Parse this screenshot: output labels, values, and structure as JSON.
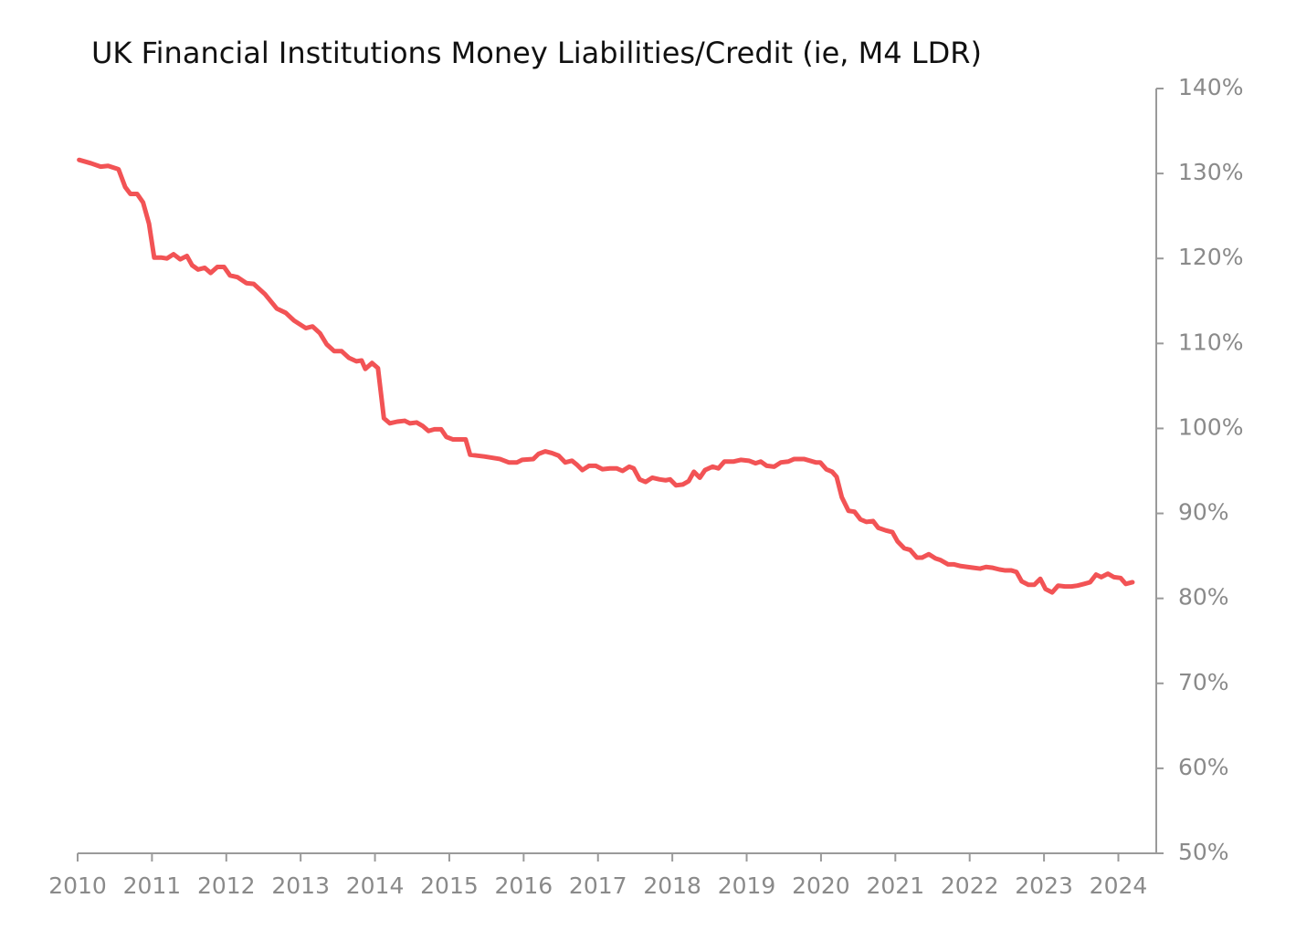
{
  "chart_data": {
    "type": "line",
    "title": "UK Financial Institutions Money Liabilities/Credit  (ie, M4 LDR)",
    "xlim": [
      2010,
      2024.51
    ],
    "xticks": [
      2010,
      2011,
      2012,
      2013,
      2014,
      2015,
      2016,
      2017,
      2018,
      2019,
      2020,
      2021,
      2022,
      2023,
      2024
    ],
    "ylim": [
      50,
      140
    ],
    "yticks": [
      {
        "value": 50,
        "label": "50%"
      },
      {
        "value": 60,
        "label": "60%"
      },
      {
        "value": 70,
        "label": "70%"
      },
      {
        "value": 80,
        "label": "80%"
      },
      {
        "value": 90,
        "label": "90%"
      },
      {
        "value": 100,
        "label": "100%"
      },
      {
        "value": 110,
        "label": "110%"
      },
      {
        "value": 120,
        "label": "120%"
      },
      {
        "value": 130,
        "label": "130%"
      },
      {
        "value": 140,
        "label": "140%"
      }
    ],
    "y_axis_side": "right",
    "grid": false,
    "x": [
      2010.02,
      2010.18,
      2010.31,
      2010.41,
      2010.55,
      2010.64,
      2010.71,
      2010.8,
      2010.88,
      2010.96,
      2011.03,
      2011.13,
      2011.2,
      2011.29,
      2011.38,
      2011.47,
      2011.54,
      2011.62,
      2011.71,
      2011.79,
      2011.88,
      2011.97,
      2012.05,
      2012.15,
      2012.27,
      2012.37,
      2012.52,
      2012.68,
      2012.8,
      2012.91,
      2013.07,
      2013.16,
      2013.26,
      2013.35,
      2013.45,
      2013.55,
      2013.65,
      2013.75,
      2013.82,
      2013.87,
      2013.96,
      2014.04,
      2014.12,
      2014.2,
      2014.3,
      2014.4,
      2014.47,
      2014.56,
      2014.64,
      2014.72,
      2014.8,
      2014.89,
      2014.96,
      2015.05,
      2015.14,
      2015.22,
      2015.28,
      2015.47,
      2015.68,
      2015.8,
      2015.91,
      2015.98,
      2016.13,
      2016.2,
      2016.29,
      2016.38,
      2016.47,
      2016.56,
      2016.65,
      2016.72,
      2016.79,
      2016.88,
      2016.97,
      2017.06,
      2017.16,
      2017.25,
      2017.33,
      2017.42,
      2017.48,
      2017.56,
      2017.64,
      2017.73,
      2017.83,
      2017.91,
      2017.97,
      2018.05,
      2018.14,
      2018.22,
      2018.29,
      2018.37,
      2018.44,
      2018.54,
      2018.62,
      2018.7,
      2018.82,
      2018.92,
      2019.03,
      2019.12,
      2019.19,
      2019.27,
      2019.37,
      2019.46,
      2019.56,
      2019.64,
      2019.77,
      2019.85,
      2019.93,
      2019.99,
      2020.07,
      2020.15,
      2020.21,
      2020.28,
      2020.37,
      2020.45,
      2020.53,
      2020.61,
      2020.7,
      2020.77,
      2020.87,
      2020.96,
      2021.03,
      2021.12,
      2021.2,
      2021.29,
      2021.36,
      2021.45,
      2021.54,
      2021.61,
      2021.71,
      2021.79,
      2021.88,
      2021.97,
      2022.05,
      2022.14,
      2022.22,
      2022.31,
      2022.4,
      2022.47,
      2022.56,
      2022.63,
      2022.7,
      2022.79,
      2022.87,
      2022.95,
      2023.02,
      2023.11,
      2023.19,
      2023.28,
      2023.37,
      2023.45,
      2023.54,
      2023.62,
      2023.7,
      2023.77,
      2023.86,
      2023.94,
      2024.03,
      2024.1,
      2024.19
    ],
    "series": [
      {
        "name": "M4 LDR",
        "color": "#f25355",
        "values": [
          131.6,
          131.2,
          130.8,
          130.9,
          130.5,
          128.4,
          127.6,
          127.6,
          126.6,
          124.1,
          120.1,
          120.1,
          120.0,
          120.5,
          119.9,
          120.3,
          119.2,
          118.7,
          118.9,
          118.3,
          119.0,
          119.0,
          118.0,
          117.8,
          117.1,
          117.0,
          115.8,
          114.1,
          113.6,
          112.7,
          111.8,
          112.0,
          111.2,
          109.9,
          109.1,
          109.1,
          108.3,
          107.9,
          108.0,
          107.0,
          107.7,
          107.1,
          101.2,
          100.6,
          100.8,
          100.9,
          100.6,
          100.7,
          100.3,
          99.7,
          99.9,
          99.9,
          99.0,
          98.7,
          98.7,
          98.7,
          96.9,
          96.7,
          96.4,
          96.0,
          96.0,
          96.3,
          96.4,
          97.0,
          97.3,
          97.1,
          96.8,
          96.0,
          96.2,
          95.7,
          95.1,
          95.6,
          95.6,
          95.2,
          95.3,
          95.3,
          95.0,
          95.5,
          95.3,
          94.0,
          93.7,
          94.2,
          94.0,
          93.9,
          94.0,
          93.3,
          93.4,
          93.8,
          94.9,
          94.2,
          95.1,
          95.5,
          95.3,
          96.1,
          96.1,
          96.3,
          96.2,
          95.9,
          96.1,
          95.6,
          95.5,
          96.0,
          96.1,
          96.4,
          96.4,
          96.2,
          96.0,
          96.0,
          95.2,
          94.9,
          94.3,
          91.9,
          90.3,
          90.2,
          89.3,
          89.0,
          89.1,
          88.3,
          88.0,
          87.8,
          86.7,
          85.9,
          85.7,
          84.8,
          84.8,
          85.2,
          84.7,
          84.5,
          84.0,
          84.0,
          83.8,
          83.7,
          83.6,
          83.5,
          83.7,
          83.6,
          83.4,
          83.3,
          83.3,
          83.1,
          82.0,
          81.6,
          81.6,
          82.3,
          81.1,
          80.7,
          81.5,
          81.4,
          81.4,
          81.5,
          81.7,
          81.9,
          82.8,
          82.5,
          82.9,
          82.5,
          82.4,
          81.7,
          81.9
        ]
      }
    ]
  }
}
